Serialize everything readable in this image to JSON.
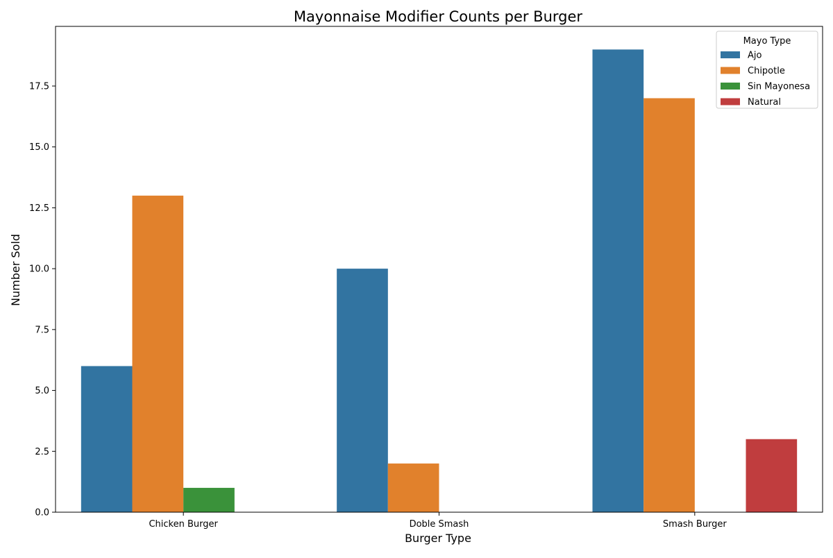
{
  "chart_data": {
    "type": "bar",
    "title": "Mayonnaise Modifier Counts per Burger",
    "xlabel": "Burger Type",
    "ylabel": "Number Sold",
    "categories": [
      "Chicken Burger",
      "Doble Smash",
      "Smash Burger"
    ],
    "series": [
      {
        "name": "Ajo",
        "color": "#3274a1",
        "values": [
          6,
          10,
          19
        ]
      },
      {
        "name": "Chipotle",
        "color": "#e1812c",
        "values": [
          13,
          2,
          17
        ]
      },
      {
        "name": "Sin Mayonesa",
        "color": "#3a923a",
        "values": [
          1,
          0,
          0
        ]
      },
      {
        "name": "Natural",
        "color": "#c03d3e",
        "values": [
          0,
          0,
          3
        ]
      }
    ],
    "ylim": [
      0,
      19.95
    ],
    "yticks": [
      0,
      2.5,
      5,
      7.5,
      10,
      12.5,
      15,
      17.5
    ],
    "ytick_labels": [
      "0.0",
      "2.5",
      "5.0",
      "7.5",
      "10.0",
      "12.5",
      "15.0",
      "17.5"
    ],
    "grid": false,
    "legend": {
      "title": "Mayo Type",
      "placement": "top-right"
    }
  }
}
